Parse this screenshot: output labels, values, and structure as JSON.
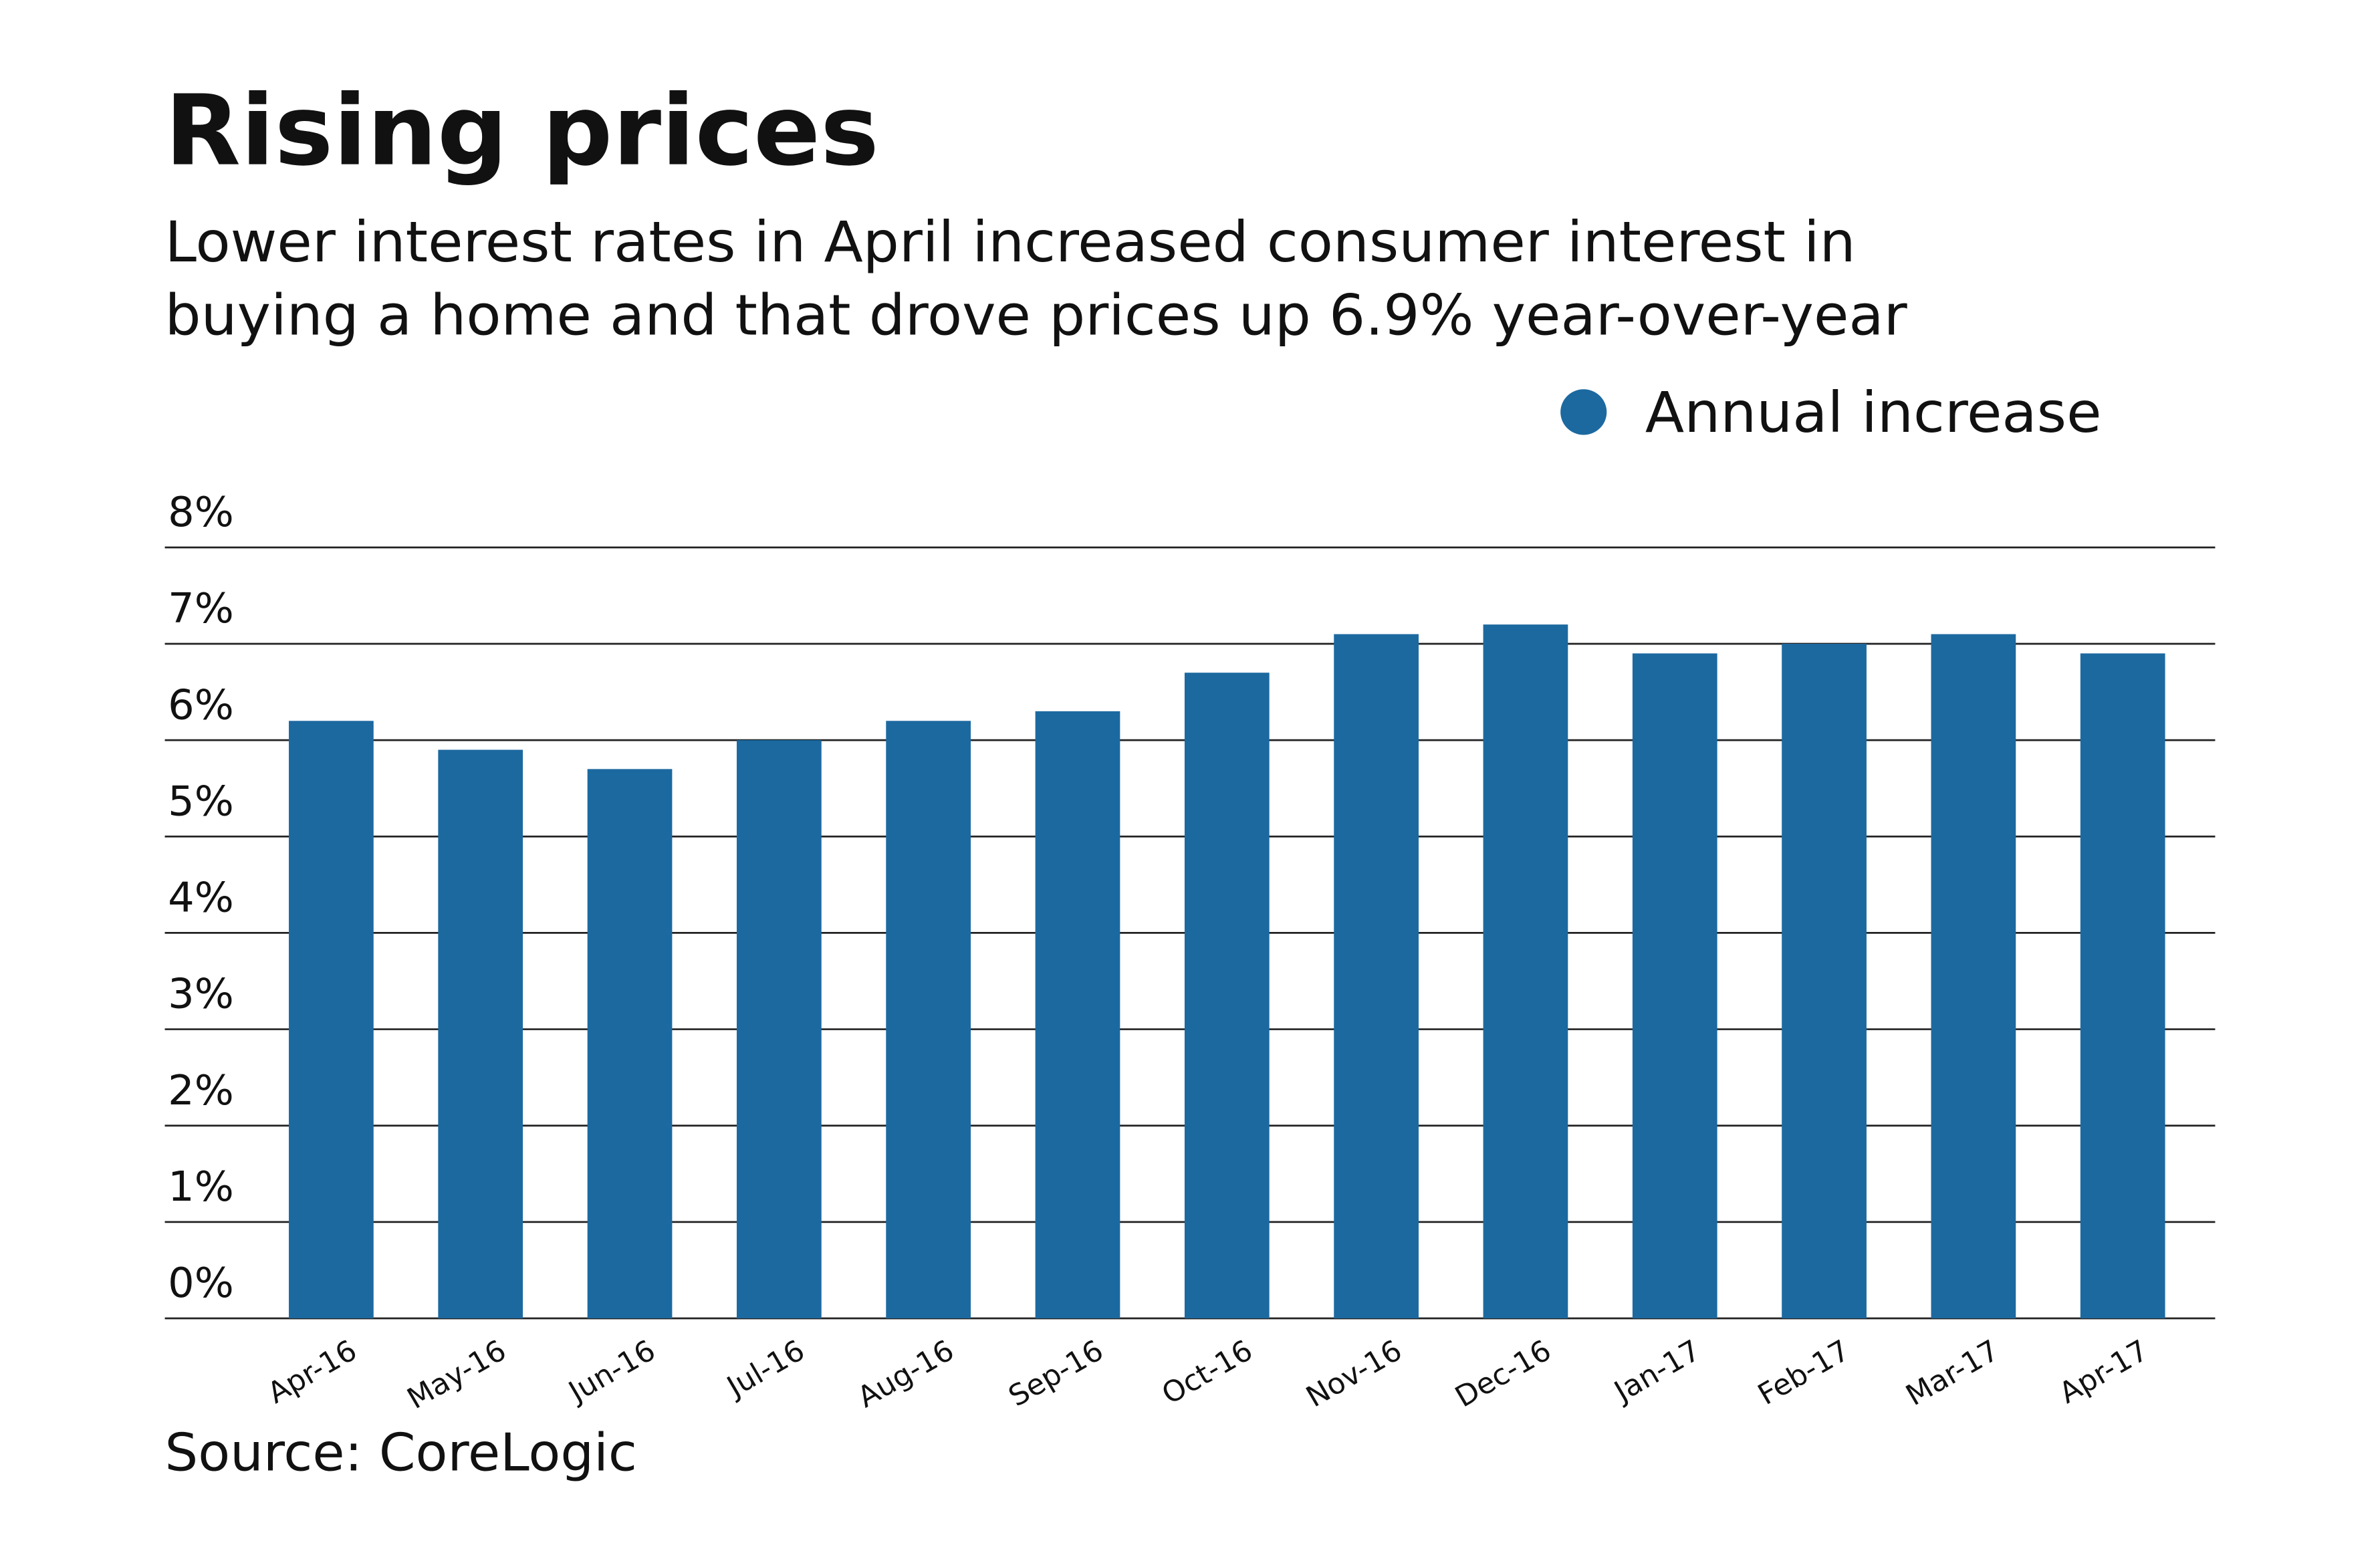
{
  "chart_data": {
    "type": "bar",
    "title": "Rising prices",
    "subtitle": [
      "Lower interest rates in April increased consumer interest in",
      "buying a home and that drove prices up 6.9% year-over-year"
    ],
    "source": "Source: CoreLogic",
    "categories": [
      "Apr-16",
      "May-16",
      "Jun-16",
      "Jul-16",
      "Aug-16",
      "Sep-16",
      "Oct-16",
      "Nov-16",
      "Dec-16",
      "Jan-17",
      "Feb-17",
      "Mar-17",
      "Apr-17"
    ],
    "series": [
      {
        "name": "Annual increase",
        "color": "#1c69a0",
        "values": [
          6.2,
          5.9,
          5.7,
          6.0,
          6.2,
          6.3,
          6.7,
          7.1,
          7.2,
          6.9,
          7.0,
          7.1,
          6.9
        ]
      }
    ],
    "ylim": [
      0,
      8
    ],
    "yticks": [
      {
        "value": 0,
        "label": "0%"
      },
      {
        "value": 1,
        "label": "1%"
      },
      {
        "value": 2,
        "label": "2%"
      },
      {
        "value": 3,
        "label": "3%"
      },
      {
        "value": 4,
        "label": "4%"
      },
      {
        "value": 5,
        "label": "5%"
      },
      {
        "value": 6,
        "label": "6%"
      },
      {
        "value": 7,
        "label": "7%"
      },
      {
        "value": 8,
        "label": "8%"
      }
    ],
    "grid": true
  }
}
